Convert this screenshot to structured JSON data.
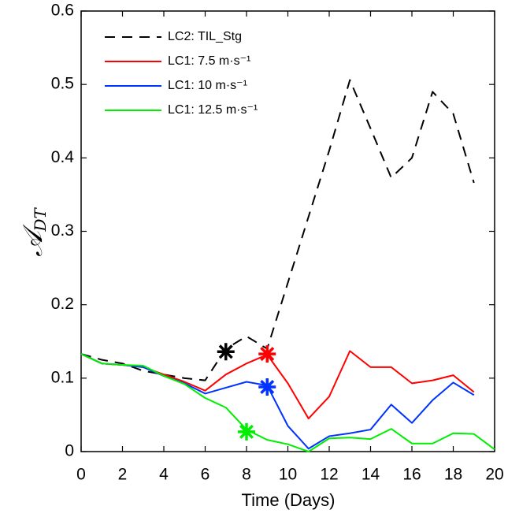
{
  "chart_data": {
    "type": "line",
    "xlabel": "Time (Days)",
    "ylabel": "𝒜",
    "ylabel_subscript": "DT",
    "x": [
      0,
      1,
      2,
      3,
      4,
      5,
      6,
      7,
      8,
      9,
      10,
      11,
      12,
      13,
      14,
      15,
      16,
      17,
      18,
      19,
      20
    ],
    "series": [
      {
        "name": "LC2: TIL_Stg",
        "color": "#000000",
        "dash": true,
        "values": [
          0.133,
          0.125,
          0.12,
          0.11,
          0.105,
          0.1,
          0.097,
          0.14,
          0.157,
          0.14,
          0.23,
          0.32,
          0.41,
          0.506,
          0.44,
          0.373,
          0.4,
          0.49,
          0.46,
          0.366,
          null
        ]
      },
      {
        "name": "LC1: 7.5 m·s⁻¹",
        "color": "#ff0000",
        "dash": false,
        "values": [
          0.133,
          0.12,
          0.118,
          0.115,
          0.105,
          0.095,
          0.083,
          0.105,
          0.12,
          0.132,
          0.093,
          0.045,
          0.075,
          0.137,
          0.115,
          0.115,
          0.093,
          0.097,
          0.104,
          0.081,
          null
        ]
      },
      {
        "name": "LC1: 10 m·s⁻¹",
        "color": "#0033ff",
        "dash": false,
        "values": [
          0.133,
          0.12,
          0.118,
          0.115,
          0.103,
          0.093,
          0.079,
          0.087,
          0.095,
          0.09,
          0.035,
          0.004,
          0.021,
          0.025,
          0.03,
          0.064,
          0.039,
          0.07,
          0.094,
          0.077,
          null
        ]
      },
      {
        "name": "LC1: 12.5 m·s⁻¹",
        "color": "#00ee00",
        "dash": false,
        "values": [
          0.133,
          0.12,
          0.118,
          0.117,
          0.103,
          0.092,
          0.073,
          0.06,
          0.03,
          0.016,
          0.01,
          0.0,
          0.018,
          0.019,
          0.017,
          0.031,
          0.011,
          0.011,
          0.025,
          0.024,
          0.003
        ]
      }
    ],
    "markers": [
      {
        "x": 7,
        "y": 0.136,
        "color": "#000000"
      },
      {
        "x": 9,
        "y": 0.133,
        "color": "#ff0000"
      },
      {
        "x": 9,
        "y": 0.088,
        "color": "#0033ff"
      },
      {
        "x": 8,
        "y": 0.027,
        "color": "#00ee00"
      }
    ],
    "xlim": [
      0,
      20
    ],
    "ylim": [
      0,
      0.6
    ],
    "xticks": [
      0,
      2,
      4,
      6,
      8,
      10,
      12,
      14,
      16,
      18,
      20
    ],
    "yticks": [
      0,
      0.1,
      0.2,
      0.3,
      0.4,
      0.5,
      0.6
    ],
    "legend": "upper left"
  }
}
